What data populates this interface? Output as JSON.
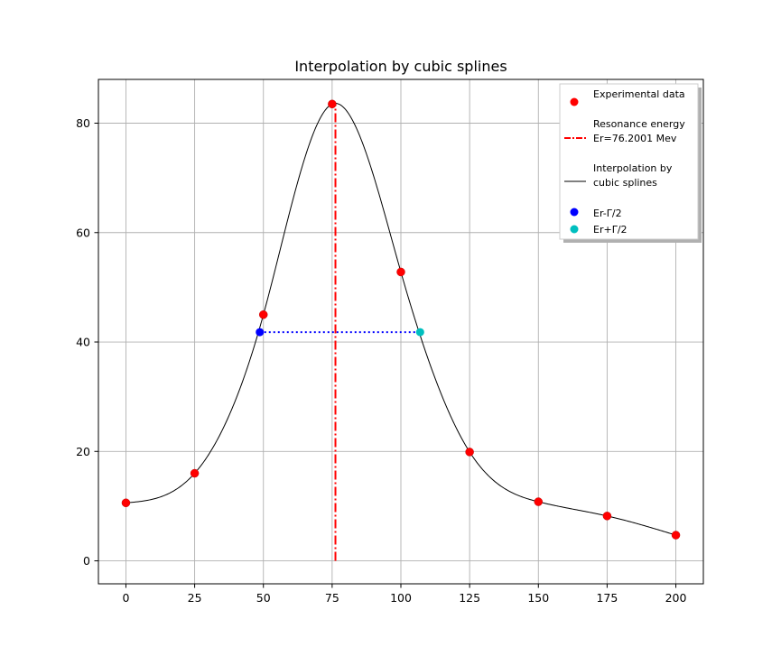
{
  "chart_data": {
    "type": "scatter",
    "title": "Interpolation by cubic splines",
    "xlabel": "",
    "ylabel": "",
    "xlim": [
      -10,
      210
    ],
    "ylim": [
      -4.2,
      88
    ],
    "xticks": [
      0,
      25,
      50,
      75,
      100,
      125,
      150,
      175,
      200
    ],
    "yticks": [
      0,
      20,
      40,
      60,
      80
    ],
    "grid": true,
    "legend_position": "top-right",
    "series": [
      {
        "name": "Experimental data",
        "kind": "points",
        "color": "#ff0000",
        "x": [
          0,
          25,
          50,
          75,
          100,
          125,
          150,
          175,
          200
        ],
        "y": [
          10.6,
          16.0,
          45.0,
          83.5,
          52.8,
          19.9,
          10.8,
          8.2,
          4.7
        ]
      },
      {
        "name": "Resonance energy\nEr=76.2001 Mev",
        "kind": "vline",
        "color": "#ff0000",
        "x": 76.2001,
        "y_range": [
          0,
          83.5
        ]
      },
      {
        "name": "Interpolation by\ncubic splines",
        "kind": "spline",
        "color": "#000000"
      },
      {
        "name": "Er-Γ/2",
        "kind": "point",
        "color": "#0000ff",
        "x": 48.7,
        "y": 41.8
      },
      {
        "name": "Er+Γ/2",
        "kind": "point",
        "color": "#00bfbf",
        "x": 107.0,
        "y": 41.8
      }
    ],
    "half_width_line": {
      "x": [
        48.7,
        107.0
      ],
      "y": 41.8,
      "color": "#0000ff",
      "style": "dotted"
    }
  }
}
